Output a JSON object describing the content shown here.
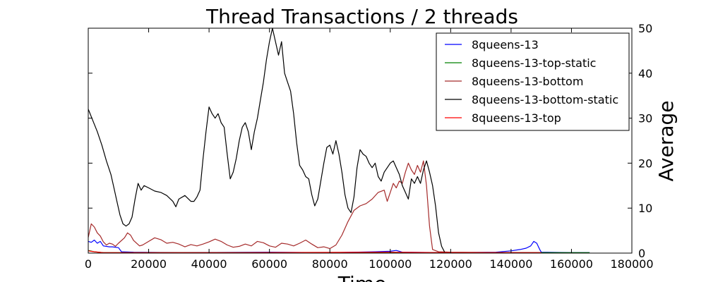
{
  "chart_data": {
    "type": "line",
    "title": "Thread Transactions / 2 threads",
    "xlabel": "Time",
    "ylabel": "Average",
    "xlim": [
      0,
      180000
    ],
    "ylim": [
      0,
      50
    ],
    "x_ticks": [
      0,
      20000,
      40000,
      60000,
      80000,
      100000,
      120000,
      140000,
      160000,
      180000
    ],
    "y_ticks": [
      0,
      10,
      20,
      30,
      40,
      50
    ],
    "y_axis_side": "right",
    "grid": false,
    "legend_position": "top-right",
    "series": [
      {
        "name": "8queens-13",
        "color": "#0000ff",
        "points": [
          [
            0,
            2.6
          ],
          [
            1000,
            2.4
          ],
          [
            2000,
            2.9
          ],
          [
            3000,
            2.2
          ],
          [
            4000,
            2.6
          ],
          [
            5000,
            1.6
          ],
          [
            7000,
            1.4
          ],
          [
            8000,
            1.4
          ],
          [
            10000,
            1.2
          ],
          [
            11000,
            0.3
          ],
          [
            15000,
            0.2
          ],
          [
            30000,
            0.1
          ],
          [
            60000,
            0.2
          ],
          [
            80000,
            0.1
          ],
          [
            95000,
            0.3
          ],
          [
            100000,
            0.4
          ],
          [
            102000,
            0.6
          ],
          [
            104000,
            0.2
          ],
          [
            120000,
            0.1
          ],
          [
            135000,
            0.2
          ],
          [
            140000,
            0.5
          ],
          [
            143000,
            0.8
          ],
          [
            145000,
            1.1
          ],
          [
            146500,
            1.6
          ],
          [
            147500,
            2.6
          ],
          [
            148500,
            2.2
          ],
          [
            149500,
            0.8
          ],
          [
            150000,
            0.2
          ],
          [
            160000,
            0.1
          ],
          [
            166000,
            0.1
          ]
        ]
      },
      {
        "name": "8queens-13-top-static",
        "color": "#008000",
        "points": [
          [
            0,
            0.6
          ],
          [
            2000,
            0.3
          ],
          [
            5000,
            0.1
          ],
          [
            50000,
            0.1
          ],
          [
            100000,
            0.1
          ],
          [
            140000,
            0.1
          ],
          [
            166000,
            0.1
          ]
        ]
      },
      {
        "name": "8queens-13-bottom",
        "color": "#a52a2a",
        "points": [
          [
            0,
            3.5
          ],
          [
            1000,
            6.5
          ],
          [
            2000,
            5.8
          ],
          [
            3000,
            4.5
          ],
          [
            4000,
            3.8
          ],
          [
            5000,
            2.5
          ],
          [
            6000,
            1.8
          ],
          [
            7000,
            2.2
          ],
          [
            8000,
            2.0
          ],
          [
            9000,
            1.5
          ],
          [
            10000,
            2.2
          ],
          [
            12000,
            3.4
          ],
          [
            13000,
            4.5
          ],
          [
            14000,
            4.0
          ],
          [
            15000,
            2.8
          ],
          [
            17000,
            1.6
          ],
          [
            18000,
            1.8
          ],
          [
            20000,
            2.6
          ],
          [
            22000,
            3.4
          ],
          [
            24000,
            3.0
          ],
          [
            26000,
            2.2
          ],
          [
            28000,
            2.4
          ],
          [
            30000,
            2.0
          ],
          [
            32000,
            1.4
          ],
          [
            34000,
            1.9
          ],
          [
            36000,
            1.6
          ],
          [
            38000,
            2.0
          ],
          [
            40000,
            2.5
          ],
          [
            42000,
            3.1
          ],
          [
            44000,
            2.6
          ],
          [
            46000,
            1.8
          ],
          [
            48000,
            1.3
          ],
          [
            50000,
            1.5
          ],
          [
            52000,
            2.0
          ],
          [
            54000,
            1.6
          ],
          [
            56000,
            2.6
          ],
          [
            58000,
            2.3
          ],
          [
            60000,
            1.6
          ],
          [
            62000,
            1.3
          ],
          [
            64000,
            2.2
          ],
          [
            66000,
            2.0
          ],
          [
            68000,
            1.6
          ],
          [
            70000,
            2.2
          ],
          [
            72000,
            2.9
          ],
          [
            74000,
            2.0
          ],
          [
            76000,
            1.2
          ],
          [
            78000,
            1.4
          ],
          [
            80000,
            1.0
          ],
          [
            82000,
            1.8
          ],
          [
            84000,
            4.0
          ],
          [
            86000,
            7.0
          ],
          [
            88000,
            9.5
          ],
          [
            90000,
            10.5
          ],
          [
            92000,
            11.0
          ],
          [
            94000,
            12.0
          ],
          [
            96000,
            13.5
          ],
          [
            98000,
            14.0
          ],
          [
            99000,
            11.5
          ],
          [
            100000,
            13.5
          ],
          [
            101000,
            15.5
          ],
          [
            102000,
            14.5
          ],
          [
            103000,
            16.0
          ],
          [
            104000,
            15.5
          ],
          [
            105000,
            18.0
          ],
          [
            106000,
            20.0
          ],
          [
            107000,
            18.5
          ],
          [
            108000,
            17.5
          ],
          [
            109000,
            19.5
          ],
          [
            110000,
            18.0
          ],
          [
            111000,
            20.5
          ],
          [
            112000,
            15.0
          ],
          [
            113000,
            6.0
          ],
          [
            114000,
            0.8
          ],
          [
            116000,
            0.3
          ],
          [
            120000,
            0.2
          ],
          [
            140000,
            0.1
          ],
          [
            150000,
            0.1
          ]
        ]
      },
      {
        "name": "8queens-13-bottom-static",
        "color": "#000000",
        "points": [
          [
            0,
            32
          ],
          [
            1500,
            29.5
          ],
          [
            3000,
            27
          ],
          [
            4500,
            24
          ],
          [
            6000,
            20.5
          ],
          [
            7500,
            17.5
          ],
          [
            8500,
            14.5
          ],
          [
            9500,
            11.5
          ],
          [
            10500,
            8.5
          ],
          [
            11500,
            6.5
          ],
          [
            12500,
            6
          ],
          [
            13500,
            6.5
          ],
          [
            14500,
            8
          ],
          [
            15500,
            12
          ],
          [
            16500,
            15.5
          ],
          [
            17500,
            14
          ],
          [
            18500,
            15
          ],
          [
            20000,
            14.5
          ],
          [
            22000,
            13.8
          ],
          [
            24000,
            13.5
          ],
          [
            26000,
            12.8
          ],
          [
            28000,
            11.5
          ],
          [
            29000,
            10.3
          ],
          [
            30000,
            12
          ],
          [
            32000,
            12.8
          ],
          [
            34000,
            11.5
          ],
          [
            35000,
            11.5
          ],
          [
            36000,
            12.5
          ],
          [
            37000,
            14
          ],
          [
            38000,
            21
          ],
          [
            39000,
            27
          ],
          [
            40000,
            32.5
          ],
          [
            41000,
            31
          ],
          [
            42000,
            30
          ],
          [
            43000,
            31
          ],
          [
            44000,
            29
          ],
          [
            45000,
            28
          ],
          [
            46000,
            22
          ],
          [
            47000,
            16.5
          ],
          [
            48000,
            18
          ],
          [
            49000,
            21
          ],
          [
            50000,
            25
          ],
          [
            51000,
            28
          ],
          [
            52000,
            29
          ],
          [
            53000,
            27
          ],
          [
            54000,
            23
          ],
          [
            55000,
            27
          ],
          [
            56000,
            30
          ],
          [
            57000,
            34
          ],
          [
            58000,
            38
          ],
          [
            59000,
            43
          ],
          [
            60000,
            47
          ],
          [
            61000,
            50
          ],
          [
            62000,
            47
          ],
          [
            63000,
            44
          ],
          [
            64000,
            47
          ],
          [
            65000,
            40
          ],
          [
            66000,
            38
          ],
          [
            67000,
            36
          ],
          [
            68000,
            31
          ],
          [
            69000,
            24.5
          ],
          [
            70000,
            19.5
          ],
          [
            71000,
            18.5
          ],
          [
            72000,
            17
          ],
          [
            73000,
            16.5
          ],
          [
            74000,
            13
          ],
          [
            75000,
            10.5
          ],
          [
            76000,
            12
          ],
          [
            77000,
            16
          ],
          [
            78000,
            20
          ],
          [
            79000,
            23.5
          ],
          [
            80000,
            24
          ],
          [
            81000,
            22
          ],
          [
            82000,
            25
          ],
          [
            83000,
            22
          ],
          [
            84000,
            18
          ],
          [
            85000,
            13
          ],
          [
            86000,
            10
          ],
          [
            87000,
            9
          ],
          [
            88000,
            12.5
          ],
          [
            89000,
            19
          ],
          [
            90000,
            23
          ],
          [
            91000,
            22
          ],
          [
            92000,
            21.5
          ],
          [
            93000,
            20
          ],
          [
            94000,
            19
          ],
          [
            95000,
            20
          ],
          [
            96000,
            17
          ],
          [
            97000,
            16
          ],
          [
            98000,
            18
          ],
          [
            99000,
            19
          ],
          [
            100000,
            20
          ],
          [
            101000,
            20.5
          ],
          [
            102000,
            19
          ],
          [
            103000,
            17.5
          ],
          [
            104000,
            15
          ],
          [
            105000,
            13.5
          ],
          [
            106000,
            12
          ],
          [
            107000,
            16.5
          ],
          [
            108000,
            15.5
          ],
          [
            109000,
            17
          ],
          [
            110000,
            15.5
          ],
          [
            111000,
            18.5
          ],
          [
            112000,
            20.5
          ],
          [
            113000,
            18
          ],
          [
            114000,
            15
          ],
          [
            115000,
            10.5
          ],
          [
            116000,
            4.5
          ],
          [
            117000,
            1.5
          ],
          [
            118000,
            0.2
          ]
        ]
      },
      {
        "name": "8queens-13-top",
        "color": "#ff0000",
        "points": [
          [
            0,
            0.5
          ],
          [
            2000,
            0.3
          ],
          [
            5000,
            0.1
          ],
          [
            50000,
            0.1
          ],
          [
            100000,
            0.2
          ],
          [
            120000,
            0.1
          ],
          [
            150000,
            0.1
          ]
        ]
      }
    ]
  }
}
